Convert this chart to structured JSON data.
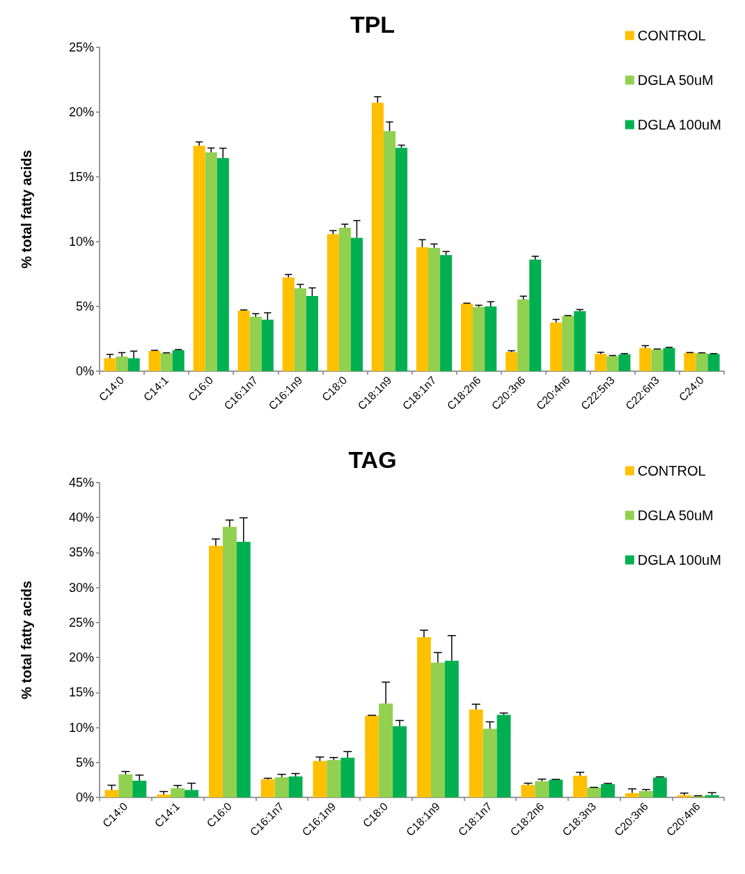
{
  "chart_data": [
    {
      "type": "bar",
      "title": "TPL",
      "ylabel": "% total fatty acids",
      "categories": [
        "C14:0",
        "C14:1",
        "C16:0",
        "C16:1n7",
        "C16:1n9",
        "C18:0",
        "C18:1n9",
        "C18:1n7",
        "C18:2n6",
        "C20:3n6",
        "C20:4n6",
        "C22:5n3",
        "C22:6n3",
        "C24:0"
      ],
      "series": [
        {
          "name": "CONTROL",
          "color": "#ffc000",
          "values": [
            1.0,
            1.56,
            17.4,
            4.68,
            7.23,
            10.58,
            20.73,
            9.57,
            5.22,
            1.48,
            3.75,
            1.33,
            1.79,
            1.41
          ],
          "errors": [
            [
              1.0,
              1.3
            ],
            [
              1.56,
              1.61
            ],
            [
              17.4,
              17.7
            ],
            [
              4.68,
              4.73
            ],
            [
              7.23,
              7.46
            ],
            [
              10.58,
              10.85
            ],
            [
              20.73,
              21.19
            ],
            [
              9.57,
              10.15
            ],
            [
              5.22,
              5.25
            ],
            [
              1.48,
              1.58
            ],
            [
              3.75,
              4.0
            ],
            [
              1.33,
              1.46
            ],
            [
              1.79,
              1.97
            ],
            [
              1.41,
              1.44
            ]
          ]
        },
        {
          "name": "DGLA 50uM",
          "color": "#92d050",
          "values": [
            1.13,
            1.39,
            16.9,
            4.21,
            6.4,
            11.08,
            18.54,
            9.52,
            4.96,
            5.54,
            4.26,
            1.16,
            1.66,
            1.39
          ],
          "errors": [
            [
              1.13,
              1.43
            ],
            [
              1.39,
              1.42
            ],
            [
              16.9,
              17.23
            ],
            [
              4.21,
              4.44
            ],
            [
              6.4,
              6.7
            ],
            [
              11.08,
              11.35
            ],
            [
              18.54,
              19.24
            ],
            [
              9.52,
              9.82
            ],
            [
              4.96,
              5.09
            ],
            [
              5.54,
              5.79
            ],
            [
              4.26,
              4.29
            ],
            [
              1.16,
              1.21
            ],
            [
              1.66,
              1.71
            ],
            [
              1.39,
              1.42
            ]
          ]
        },
        {
          "name": "DGLA 100uM",
          "color": "#00b050",
          "values": [
            1.0,
            1.62,
            16.45,
            3.98,
            5.8,
            10.3,
            17.25,
            8.96,
            5.0,
            8.62,
            4.64,
            1.31,
            1.79,
            1.33
          ],
          "errors": [
            [
              1.0,
              1.55
            ],
            [
              1.62,
              1.67
            ],
            [
              16.45,
              17.21
            ],
            [
              3.98,
              4.51
            ],
            [
              5.8,
              6.43
            ],
            [
              10.3,
              11.63
            ],
            [
              17.25,
              17.45
            ],
            [
              8.96,
              9.24
            ],
            [
              5.0,
              5.36
            ],
            [
              8.62,
              8.87
            ],
            [
              4.64,
              4.76
            ],
            [
              1.31,
              1.36
            ],
            [
              1.79,
              1.84
            ],
            [
              1.33,
              1.36
            ]
          ]
        }
      ],
      "ylim": [
        0,
        25
      ],
      "yticks": [
        {
          "value": 0,
          "label": "0%"
        },
        {
          "value": 5,
          "label": "5%"
        },
        {
          "value": 10,
          "label": "10%"
        },
        {
          "value": 15,
          "label": "15%"
        },
        {
          "value": 20,
          "label": "20%"
        },
        {
          "value": 25,
          "label": "25%"
        }
      ],
      "grid": false,
      "legend": "top right"
    },
    {
      "type": "bar",
      "title": "TAG",
      "ylabel": "% total fatty acids",
      "categories": [
        "C14:0",
        "C14:1",
        "C16:0",
        "C16:1n7",
        "C16:1n9",
        "C18:0",
        "C18:1n9",
        "C18:1n7",
        "C18:2n6",
        "C18:3n3",
        "C20:3n6",
        "C20:4n6"
      ],
      "series": [
        {
          "name": "CONTROL",
          "color": "#ffc000",
          "values": [
            1.06,
            0.42,
            35.97,
            2.58,
            5.19,
            11.68,
            22.9,
            12.58,
            1.77,
            3.1,
            0.61,
            0.32
          ],
          "errors": [
            [
              1.06,
              1.74
            ],
            [
              0.42,
              0.84
            ],
            [
              35.97,
              36.94
            ],
            [
              2.58,
              2.74
            ],
            [
              5.19,
              5.77
            ],
            [
              11.68,
              11.73
            ],
            [
              22.9,
              23.9
            ],
            [
              12.58,
              13.32
            ],
            [
              1.77,
              2.03
            ],
            [
              3.1,
              3.58
            ],
            [
              0.61,
              1.22
            ],
            [
              0.32,
              0.61
            ]
          ]
        },
        {
          "name": "DGLA 50uM",
          "color": "#92d050",
          "values": [
            3.29,
            1.32,
            38.68,
            2.87,
            5.35,
            13.42,
            19.26,
            9.8,
            2.32,
            1.39,
            0.9,
            0.19
          ],
          "errors": [
            [
              3.29,
              3.71
            ],
            [
              1.32,
              1.71
            ],
            [
              38.68,
              39.65
            ],
            [
              2.87,
              3.29
            ],
            [
              5.35,
              5.7
            ],
            [
              13.42,
              16.48
            ],
            [
              19.26,
              20.71
            ],
            [
              9.8,
              10.8
            ],
            [
              2.32,
              2.61
            ],
            [
              1.39,
              1.44
            ],
            [
              0.9,
              1.13
            ],
            [
              0.19,
              0.24
            ]
          ]
        },
        {
          "name": "DGLA 100uM",
          "color": "#00b050",
          "values": [
            2.39,
            1.06,
            36.55,
            3.0,
            5.68,
            10.19,
            19.55,
            11.8,
            2.52,
            1.9,
            2.84,
            0.32
          ],
          "errors": [
            [
              2.39,
              3.19
            ],
            [
              1.06,
              2.03
            ],
            [
              36.55,
              39.97
            ],
            [
              3.0,
              3.42
            ],
            [
              5.68,
              6.55
            ],
            [
              10.19,
              11.0
            ],
            [
              19.55,
              23.13
            ],
            [
              11.8,
              12.06
            ],
            [
              2.52,
              2.57
            ],
            [
              1.9,
              2.0
            ],
            [
              2.84,
              2.94
            ],
            [
              0.32,
              0.67
            ]
          ]
        }
      ],
      "ylim": [
        0,
        45
      ],
      "yticks": [
        {
          "value": 0,
          "label": "0%"
        },
        {
          "value": 5,
          "label": "5%"
        },
        {
          "value": 10,
          "label": "10%"
        },
        {
          "value": 15,
          "label": "15%"
        },
        {
          "value": 20,
          "label": "20%"
        },
        {
          "value": 25,
          "label": "25%"
        },
        {
          "value": 30,
          "label": "30%"
        },
        {
          "value": 35,
          "label": "35%"
        },
        {
          "value": 40,
          "label": "40%"
        },
        {
          "value": 45,
          "label": "45%"
        }
      ],
      "grid": false,
      "legend": "top right"
    }
  ]
}
